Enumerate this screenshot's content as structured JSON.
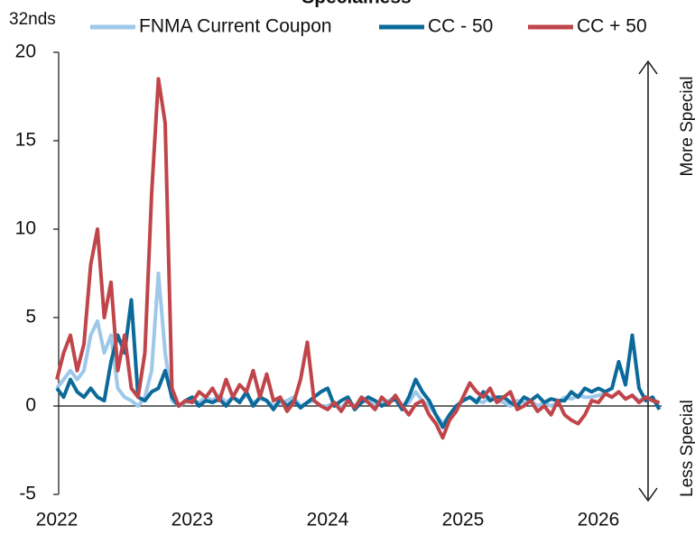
{
  "chart_data": {
    "type": "line",
    "title": "Specialness",
    "ylabel": "32nds",
    "annotations": [
      "More Special",
      "Less Special"
    ],
    "x": [
      2022.0,
      2022.05,
      2022.1,
      2022.15,
      2022.2,
      2022.25,
      2022.3,
      2022.35,
      2022.4,
      2022.45,
      2022.5,
      2022.55,
      2022.6,
      2022.65,
      2022.7,
      2022.75,
      2022.8,
      2022.85,
      2022.9,
      2022.95,
      2023.0,
      2023.05,
      2023.1,
      2023.15,
      2023.2,
      2023.25,
      2023.3,
      2023.35,
      2023.4,
      2023.45,
      2023.5,
      2023.55,
      2023.6,
      2023.65,
      2023.7,
      2023.75,
      2023.8,
      2023.85,
      2023.9,
      2023.95,
      2024.0,
      2024.05,
      2024.1,
      2024.15,
      2024.2,
      2024.25,
      2024.3,
      2024.35,
      2024.4,
      2024.45,
      2024.5,
      2024.55,
      2024.6,
      2024.65,
      2024.7,
      2024.75,
      2024.8,
      2024.85,
      2024.9,
      2024.95,
      2025.0,
      2025.05,
      2025.1,
      2025.15,
      2025.2,
      2025.25,
      2025.3,
      2025.35,
      2025.4,
      2025.45,
      2025.5,
      2025.55,
      2025.6,
      2025.65,
      2025.7,
      2025.75,
      2025.8,
      2025.85,
      2025.9,
      2025.95,
      2026.0,
      2026.05,
      2026.1,
      2026.15,
      2026.2,
      2026.25,
      2026.3,
      2026.35,
      2026.4,
      2026.45
    ],
    "series": [
      {
        "name": "FNMA Current Coupon",
        "color": "#9dc8ea",
        "values": [
          1,
          1.5,
          2,
          1.5,
          2,
          4,
          4.8,
          3,
          4,
          1,
          0.5,
          0.3,
          0,
          0.5,
          2,
          7.5,
          3,
          0.3,
          0,
          0.2,
          0.3,
          0.2,
          0.5,
          0.3,
          0.6,
          0.2,
          0.5,
          0.3,
          0.6,
          0.2,
          0.4,
          0.3,
          0,
          0.2,
          0.3,
          0.5,
          0,
          0.2,
          0.3,
          0,
          0,
          0.2,
          -0.1,
          0.3,
          0,
          0.2,
          0.3,
          0,
          0.2,
          0.3,
          0.5,
          0,
          0.2,
          0.8,
          0.3,
          0,
          -0.5,
          -1,
          -0.5,
          0,
          0.3,
          0.5,
          0.3,
          0.2,
          0.5,
          0.3,
          0.2,
          0,
          0.3,
          0.2,
          0.3,
          0,
          0.2,
          0,
          0.2,
          0.5,
          0.4,
          0.6,
          0.5,
          0.5,
          0.6,
          0.7,
          0.5,
          0.8,
          0.4,
          0.6,
          0.3,
          0.5,
          0.3,
          0.1
        ]
      },
      {
        "name": "CC - 50",
        "color": "#0b6a9a",
        "values": [
          1,
          0.5,
          1.5,
          0.8,
          0.5,
          1,
          0.5,
          0.3,
          2.5,
          4,
          3,
          6,
          0.5,
          0.3,
          0.8,
          1,
          2,
          0.5,
          0,
          0.3,
          0.5,
          0,
          0.3,
          0.2,
          0.4,
          0,
          0.5,
          0.2,
          0.8,
          0,
          0.5,
          0.3,
          -0.2,
          0.4,
          0,
          0.3,
          -0.1,
          0.2,
          0.5,
          0.8,
          1,
          0,
          0.3,
          0.5,
          -0.2,
          0.2,
          0.5,
          0.3,
          0,
          0.2,
          0.4,
          -0.2,
          0.5,
          1.5,
          0.8,
          0.3,
          -0.5,
          -1.2,
          -0.5,
          0,
          0.3,
          0.5,
          0.2,
          0.8,
          0.3,
          0.5,
          0.5,
          0.2,
          0,
          0.5,
          0.3,
          0.6,
          0.2,
          0.4,
          0.3,
          0.3,
          0.8,
          0.5,
          1,
          0.8,
          1,
          0.8,
          1,
          2.5,
          1.2,
          4,
          1,
          0.3,
          0.5,
          -0.2
        ]
      },
      {
        "name": "CC + 50",
        "color": "#c0454a",
        "values": [
          1.5,
          3,
          4,
          2,
          3.5,
          8,
          10,
          5,
          7,
          2,
          4,
          1,
          0.5,
          3,
          12,
          18.5,
          16,
          1,
          0,
          0.3,
          0.2,
          0.8,
          0.5,
          1,
          0.3,
          1.5,
          0.5,
          1.2,
          0.8,
          2,
          0.5,
          1.8,
          0.3,
          0.5,
          -0.3,
          0.2,
          1.5,
          3.6,
          0.3,
          0,
          -0.2,
          0.2,
          -0.3,
          0.3,
          -0.1,
          0.5,
          0.2,
          -0.2,
          0.5,
          0.1,
          0.6,
          0,
          -0.5,
          0.1,
          0.3,
          -0.5,
          -1,
          -1.8,
          -0.8,
          -0.3,
          0.5,
          1.3,
          0.8,
          0.5,
          1,
          0.2,
          0.5,
          0.8,
          -0.2,
          0,
          0.3,
          -0.3,
          0,
          -0.5,
          0.3,
          -0.5,
          -0.8,
          -1,
          -0.5,
          0.3,
          0.2,
          0.7,
          0.5,
          0.8,
          0.4,
          0.6,
          0.2,
          0.5,
          0.3,
          0.2
        ]
      }
    ],
    "xlim": [
      2022,
      2026.5
    ],
    "xticks": [
      2022,
      2023,
      2024,
      2025,
      2026
    ],
    "ylim": [
      -5,
      20
    ],
    "yticks": [
      -5,
      0,
      5,
      10,
      15,
      20
    ],
    "grid": false
  }
}
